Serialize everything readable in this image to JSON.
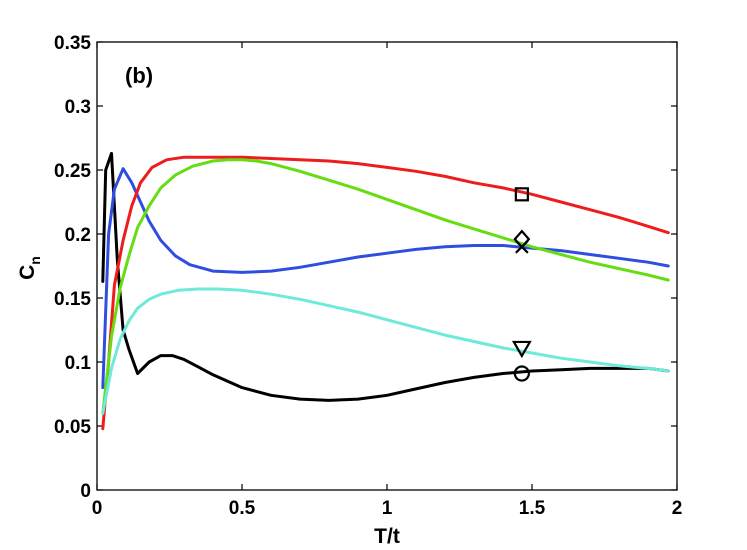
{
  "chart_data": {
    "type": "line",
    "panel_label": "(b)",
    "xlabel": "T/t",
    "ylabel_main": "C",
    "ylabel_sub": "n",
    "xlim": [
      0,
      2
    ],
    "ylim": [
      0,
      0.35
    ],
    "xticks": [
      0,
      0.5,
      1,
      1.5,
      2
    ],
    "xtick_labels": [
      "0",
      "0.5",
      "1",
      "1.5",
      "2"
    ],
    "yticks": [
      0,
      0.05,
      0.1,
      0.15,
      0.2,
      0.25,
      0.3,
      0.35
    ],
    "ytick_labels": [
      "0",
      "0.05",
      "0.1",
      "0.15",
      "0.2",
      "0.25",
      "0.3",
      "0.35"
    ],
    "grid": false,
    "series": [
      {
        "name": "black",
        "color": "#000000",
        "x": [
          0.02,
          0.03,
          0.05,
          0.07,
          0.09,
          0.11,
          0.14,
          0.18,
          0.22,
          0.26,
          0.3,
          0.35,
          0.4,
          0.5,
          0.6,
          0.7,
          0.8,
          0.9,
          1.0,
          1.1,
          1.2,
          1.3,
          1.4,
          1.5,
          1.6,
          1.7,
          1.8,
          1.9,
          1.97
        ],
        "values": [
          0.163,
          0.25,
          0.263,
          0.18,
          0.125,
          0.11,
          0.091,
          0.1,
          0.105,
          0.105,
          0.102,
          0.096,
          0.09,
          0.08,
          0.074,
          0.071,
          0.07,
          0.071,
          0.074,
          0.079,
          0.084,
          0.088,
          0.091,
          0.093,
          0.094,
          0.095,
          0.095,
          0.095,
          0.093
        ]
      },
      {
        "name": "blue",
        "color": "#2f4ee0",
        "x": [
          0.02,
          0.04,
          0.06,
          0.09,
          0.12,
          0.15,
          0.18,
          0.22,
          0.27,
          0.32,
          0.4,
          0.5,
          0.6,
          0.7,
          0.8,
          0.9,
          1.0,
          1.1,
          1.2,
          1.3,
          1.4,
          1.5,
          1.6,
          1.7,
          1.8,
          1.9,
          1.97
        ],
        "values": [
          0.08,
          0.2,
          0.235,
          0.251,
          0.24,
          0.225,
          0.21,
          0.195,
          0.183,
          0.176,
          0.171,
          0.17,
          0.171,
          0.174,
          0.178,
          0.182,
          0.185,
          0.188,
          0.19,
          0.191,
          0.191,
          0.189,
          0.187,
          0.184,
          0.181,
          0.178,
          0.175
        ]
      },
      {
        "name": "red",
        "color": "#ee1c1c",
        "x": [
          0.02,
          0.04,
          0.06,
          0.09,
          0.12,
          0.15,
          0.19,
          0.24,
          0.3,
          0.4,
          0.5,
          0.6,
          0.7,
          0.8,
          0.9,
          1.0,
          1.1,
          1.2,
          1.3,
          1.4,
          1.5,
          1.6,
          1.7,
          1.8,
          1.9,
          1.97
        ],
        "values": [
          0.048,
          0.1,
          0.16,
          0.195,
          0.222,
          0.24,
          0.252,
          0.258,
          0.26,
          0.26,
          0.26,
          0.259,
          0.258,
          0.257,
          0.255,
          0.252,
          0.249,
          0.245,
          0.24,
          0.236,
          0.231,
          0.225,
          0.219,
          0.213,
          0.206,
          0.201
        ]
      },
      {
        "name": "green",
        "color": "#66dd11",
        "x": [
          0.02,
          0.05,
          0.08,
          0.11,
          0.14,
          0.18,
          0.22,
          0.27,
          0.33,
          0.4,
          0.45,
          0.5,
          0.55,
          0.6,
          0.7,
          0.8,
          0.9,
          1.0,
          1.1,
          1.2,
          1.3,
          1.4,
          1.5,
          1.6,
          1.7,
          1.8,
          1.9,
          1.97
        ],
        "values": [
          0.06,
          0.12,
          0.158,
          0.183,
          0.205,
          0.222,
          0.236,
          0.246,
          0.253,
          0.257,
          0.258,
          0.258,
          0.257,
          0.255,
          0.249,
          0.242,
          0.235,
          0.227,
          0.219,
          0.211,
          0.204,
          0.197,
          0.19,
          0.184,
          0.178,
          0.173,
          0.168,
          0.164
        ]
      },
      {
        "name": "cyan",
        "color": "#6fe9d9",
        "x": [
          0.02,
          0.05,
          0.08,
          0.11,
          0.14,
          0.18,
          0.22,
          0.28,
          0.35,
          0.42,
          0.5,
          0.6,
          0.7,
          0.8,
          0.9,
          1.0,
          1.1,
          1.2,
          1.3,
          1.4,
          1.5,
          1.6,
          1.7,
          1.8,
          1.9,
          1.97
        ],
        "values": [
          0.06,
          0.095,
          0.118,
          0.132,
          0.142,
          0.149,
          0.153,
          0.156,
          0.157,
          0.157,
          0.156,
          0.153,
          0.149,
          0.144,
          0.139,
          0.133,
          0.127,
          0.121,
          0.116,
          0.111,
          0.107,
          0.103,
          0.1,
          0.097,
          0.095,
          0.093
        ]
      }
    ],
    "markers": [
      {
        "name": "square",
        "shape": "square",
        "x": 1.465,
        "y": 0.231
      },
      {
        "name": "diamond",
        "shape": "diamond",
        "x": 1.465,
        "y": 0.196
      },
      {
        "name": "cross",
        "shape": "x",
        "x": 1.465,
        "y": 0.19
      },
      {
        "name": "triangle",
        "shape": "triangle-down",
        "x": 1.465,
        "y": 0.111
      },
      {
        "name": "circle",
        "shape": "circle",
        "x": 1.465,
        "y": 0.091
      }
    ]
  }
}
